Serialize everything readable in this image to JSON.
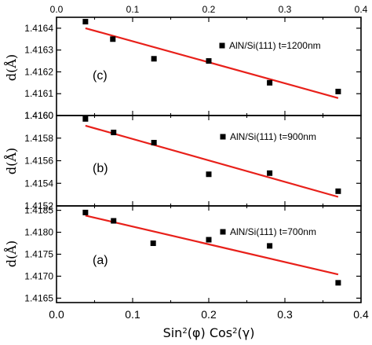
{
  "chart_data": [
    {
      "type": "scatter",
      "panel_label": "(c)",
      "legend": "AlN/Si(111) t=1200nm",
      "xlim": [
        0.0,
        0.4
      ],
      "ylim": [
        1.416,
        1.41645
      ],
      "yticks": [
        "1.4160",
        "1.4161",
        "1.4162",
        "1.4163",
        "1.4164"
      ],
      "ytick_values": [
        1.416,
        1.4161,
        1.4162,
        1.4163,
        1.4164
      ],
      "ylabel": "d(Å)",
      "series": [
        {
          "x": [
            0.038,
            0.074,
            0.128,
            0.2,
            0.28,
            0.37
          ],
          "y": [
            1.41643,
            1.41635,
            1.41626,
            1.41625,
            1.41615,
            1.41611
          ]
        }
      ],
      "fit_line": {
        "x": [
          0.038,
          0.37
        ],
        "y": [
          1.4164,
          1.41608
        ]
      }
    },
    {
      "type": "scatter",
      "panel_label": "(b)",
      "legend": "AlN/Si(111) t=900nm",
      "xlim": [
        0.0,
        0.4
      ],
      "ylim": [
        1.4152,
        1.416
      ],
      "yticks": [
        "1.4152",
        "1.4154",
        "1.4156",
        "1.4158",
        "1.4160"
      ],
      "ytick_values": [
        1.4152,
        1.4154,
        1.4156,
        1.4158,
        1.416
      ],
      "ylabel": "d(Å)",
      "series": [
        {
          "x": [
            0.038,
            0.075,
            0.128,
            0.2,
            0.28,
            0.37
          ],
          "y": [
            1.41597,
            1.41585,
            1.41576,
            1.41548,
            1.41549,
            1.41533
          ]
        }
      ],
      "fit_line": {
        "x": [
          0.038,
          0.37
        ],
        "y": [
          1.41591,
          1.41528
        ]
      }
    },
    {
      "type": "scatter",
      "panel_label": "(a)",
      "legend": "AlN/Si(111) t=700nm",
      "xlim": [
        0.0,
        0.4
      ],
      "ylim": [
        1.4164,
        1.4186
      ],
      "yticks": [
        "1.4165",
        "1.4170",
        "1.4175",
        "1.4180",
        "1.4185"
      ],
      "ytick_values": [
        1.4165,
        1.417,
        1.4175,
        1.418,
        1.4185
      ],
      "ylabel": "d(Å)",
      "xlabel": "Sin²(φ) Cos²(γ)",
      "series": [
        {
          "x": [
            0.038,
            0.075,
            0.127,
            0.2,
            0.28,
            0.37
          ],
          "y": [
            1.41845,
            1.41826,
            1.41775,
            1.41783,
            1.41769,
            1.41685
          ]
        }
      ],
      "fit_line": {
        "x": [
          0.038,
          0.37
        ],
        "y": [
          1.41838,
          1.41704
        ]
      }
    }
  ],
  "top_axis": {
    "ticks": [
      "0.0",
      "0.1",
      "0.2",
      "0.3",
      "0.4"
    ],
    "values": [
      0.0,
      0.1,
      0.2,
      0.3,
      0.4
    ]
  },
  "bottom_axis": {
    "ticks": [
      "0.0",
      "0.1",
      "0.2",
      "0.3",
      "0.4"
    ],
    "values": [
      0.0,
      0.1,
      0.2,
      0.3,
      0.4
    ]
  },
  "colors": {
    "fit_line": "#e8201a",
    "markers": "#000000",
    "axes": "#000000"
  }
}
